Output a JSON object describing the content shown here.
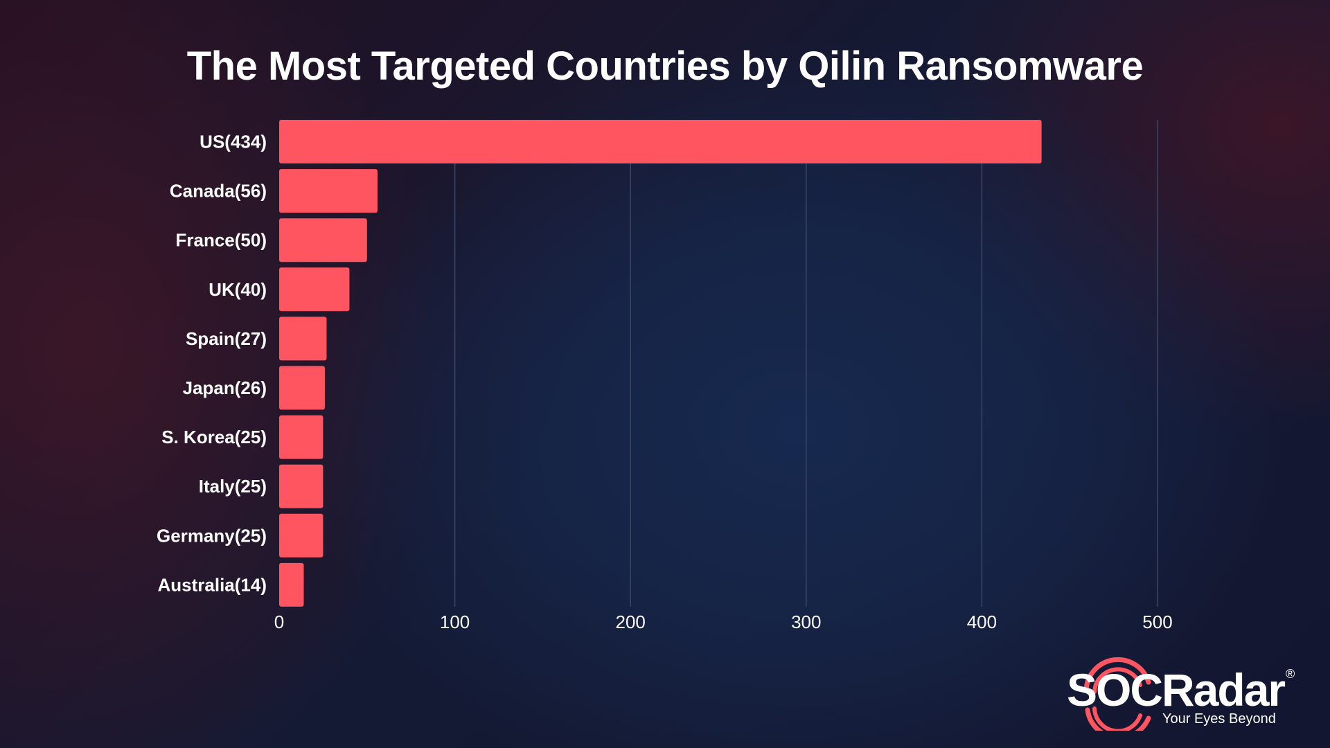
{
  "chart_data": {
    "type": "bar",
    "orientation": "horizontal",
    "title": "The Most Targeted Countries by Qilin Ransomware",
    "categories": [
      "US(434)",
      "Canada(56)",
      "France(50)",
      "UK(40)",
      "Spain(27)",
      "Japan(26)",
      "S. Korea(25)",
      "Italy(25)",
      "Germany(25)",
      "Australia(14)"
    ],
    "values": [
      434,
      56,
      50,
      40,
      27,
      26,
      25,
      25,
      25,
      14
    ],
    "xticks": [
      0,
      100,
      200,
      300,
      400,
      500
    ],
    "xlim": [
      0,
      500
    ],
    "grid": "vertical",
    "bar_color": "#ff5561",
    "grid_color": "#3d4663"
  },
  "brand": {
    "name": "SOCRadar",
    "registered": "®",
    "tagline": "Your Eyes Beyond",
    "accent_color": "#ff5561"
  }
}
